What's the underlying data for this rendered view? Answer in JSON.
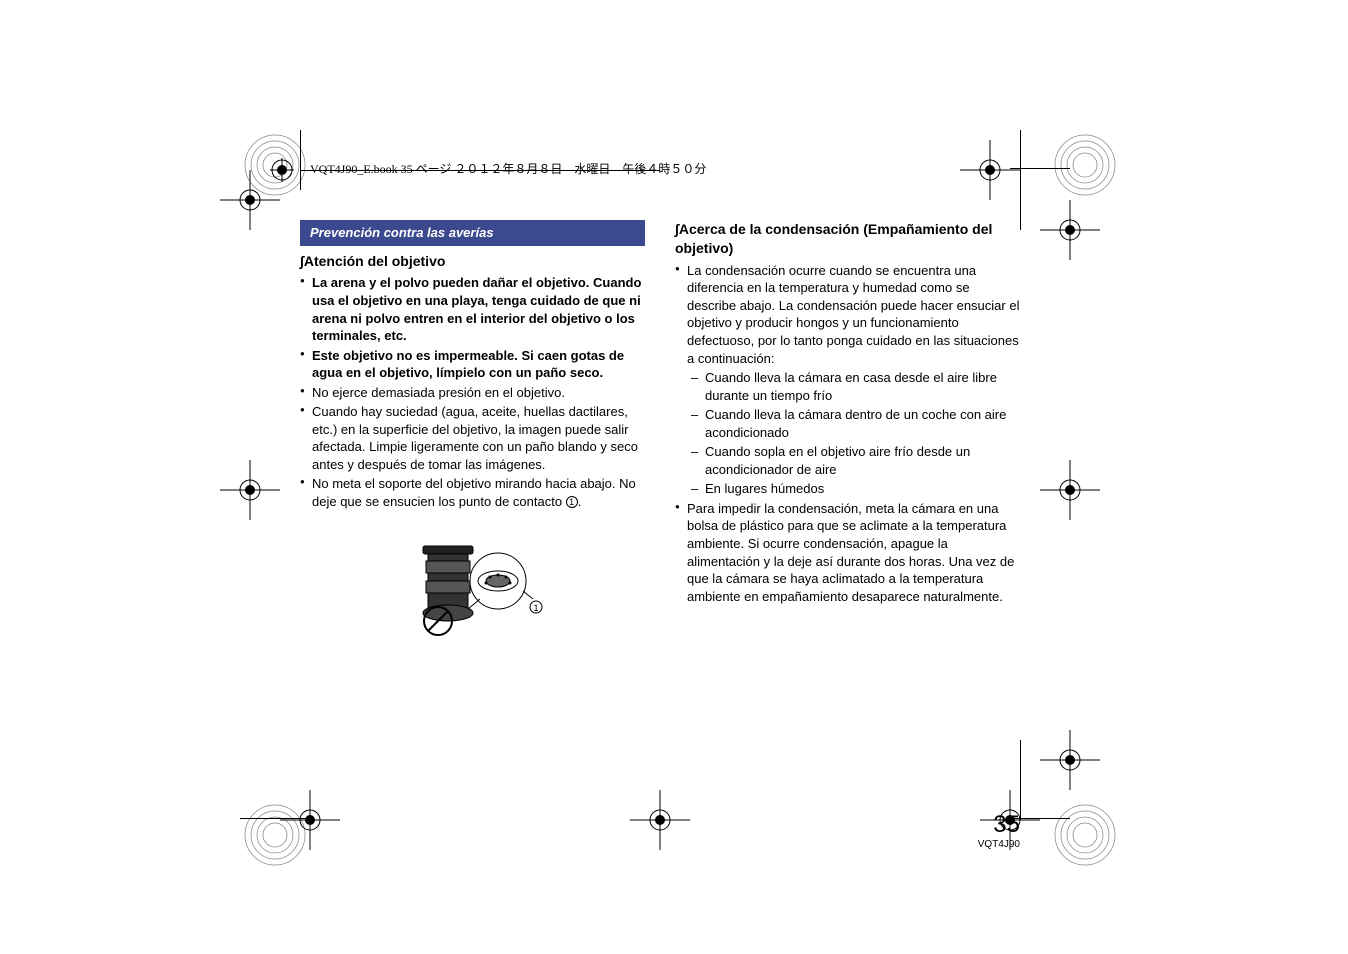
{
  "header": {
    "text": "VQT4J90_E.book  35 ページ  ２０１２年８月８日　水曜日　午後４時５０分"
  },
  "section_bar": "Prevención contra las averías",
  "left": {
    "heading": "Atención del objetivo",
    "bullets": [
      {
        "text": "La arena y el polvo pueden dañar el objetivo. Cuando usa el objetivo en una playa, tenga cuidado de que ni arena ni polvo entren en el interior del objetivo o los terminales, etc.",
        "bold": true
      },
      {
        "text": "Este objetivo no es impermeable. Si caen gotas de agua en el objetivo, límpielo con un paño seco.",
        "bold": true
      },
      {
        "text": "No ejerce demasiada presión en el objetivo.",
        "bold": false
      },
      {
        "text": "Cuando hay suciedad (agua, aceite, huellas dactilares, etc.) en la superficie del objetivo, la imagen puede salir afectada. Limpie ligeramente con un paño blando y seco antes y después de tomar las imágenes.",
        "bold": false
      },
      {
        "text_pre": "No meta el soporte del objetivo mirando hacia abajo. No deje que se ensucien los punto de contacto ",
        "circ": "1",
        "text_post": ".",
        "bold": false
      }
    ]
  },
  "right": {
    "heading": "Acerca de la condensación (Empañamiento del objetivo)",
    "intro": "La condensación ocurre cuando se encuentra una diferencia en la temperatura y humedad como se describe abajo. La condensación puede hacer ensuciar el objetivo y producir hongos y un funcionamiento defectuoso, por lo tanto ponga cuidado en las situaciones a continuación:",
    "dashes": [
      "Cuando lleva la cámara en casa desde el aire libre durante un tiempo frío",
      "Cuando lleva la cámara dentro de un coche con aire acondicionado",
      "Cuando sopla en el objetivo aire frío desde un acondicionador de aire",
      "En lugares húmedos"
    ],
    "outro": "Para impedir la condensación, meta la cámara en una bolsa de plástico para que se aclimate a la temperatura ambiente. Si ocurre condensación, apague la alimentación y la deje así durante dos horas. Una vez de que la cámara se haya aclimatado a la temperatura ambiente en empañamiento desaparece naturalmente."
  },
  "page": {
    "num": "35",
    "code": "VQT4J90"
  },
  "diagram_label": "1"
}
